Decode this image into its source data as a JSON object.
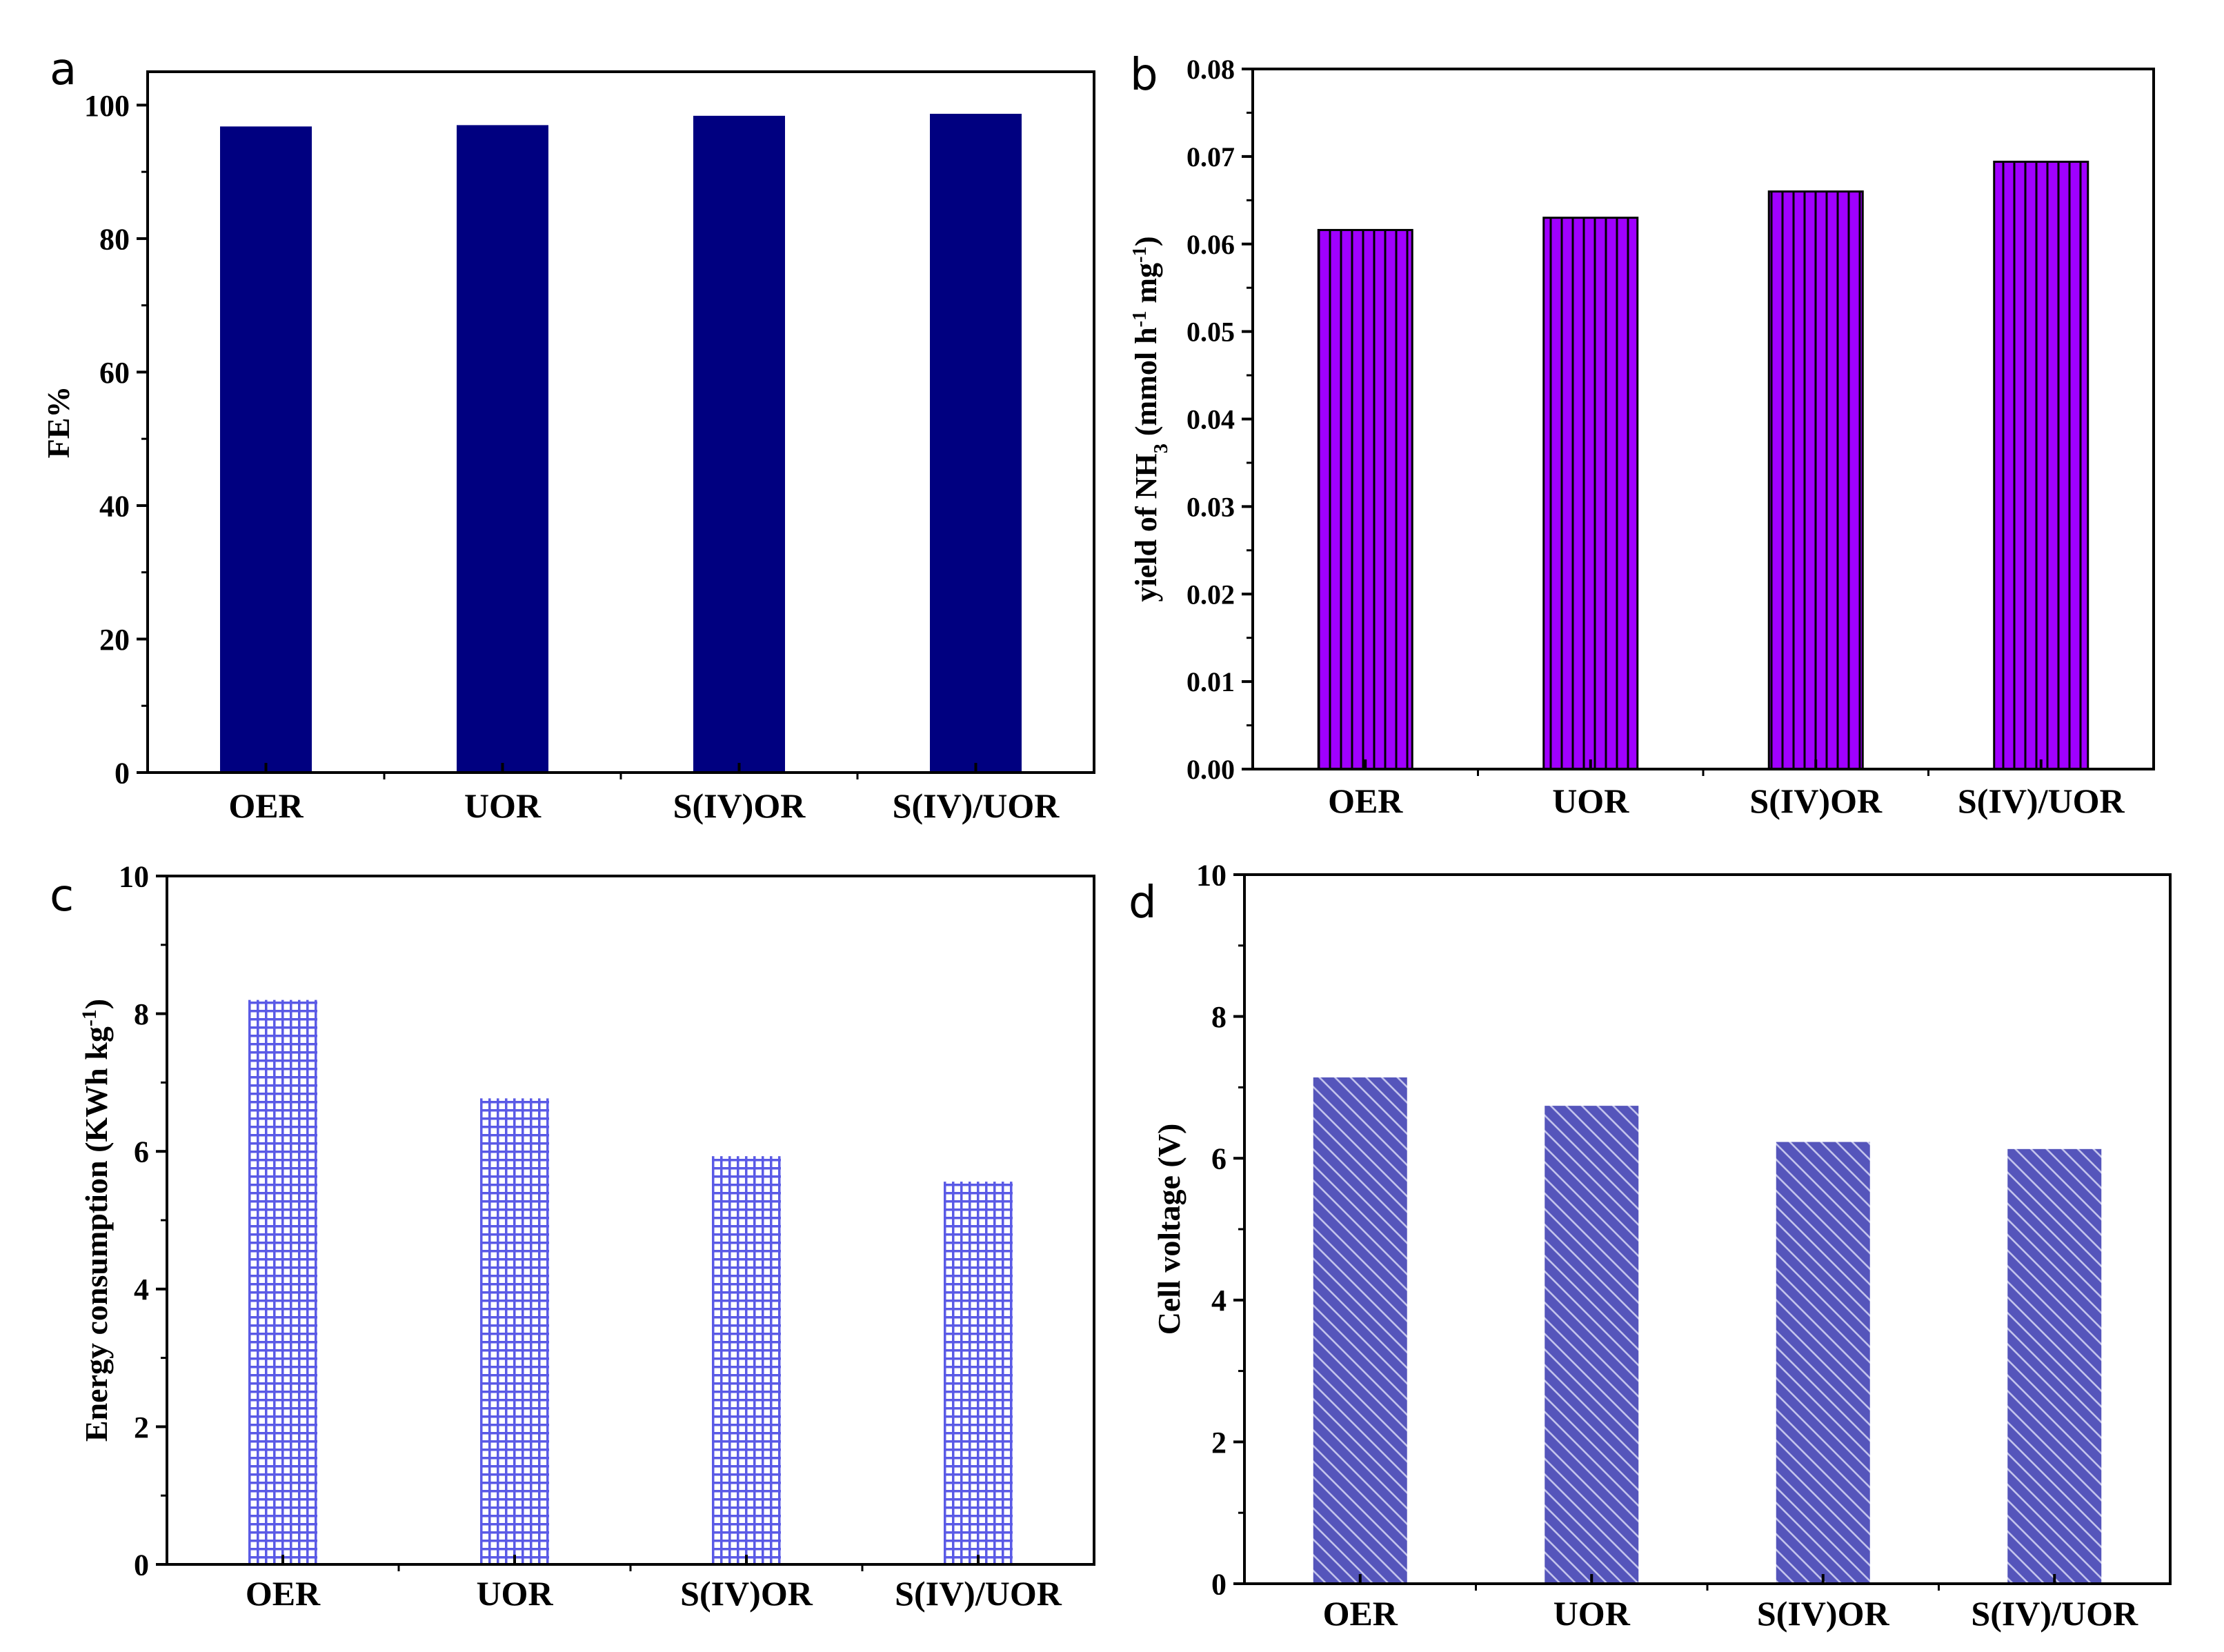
{
  "panels": [
    {
      "letter": "a",
      "chart_data": {
        "type": "bar",
        "categories": [
          "OER",
          "UOR",
          "S(IV)OR",
          "S(IV)/UOR"
        ],
        "values": [
          96.8,
          97.0,
          98.4,
          98.7
        ],
        "ylabel": "FE%",
        "ylim": [
          0,
          105
        ],
        "yticks": [
          0,
          20,
          40,
          60,
          80,
          100
        ],
        "ytick_labels": [
          "0",
          "20",
          "40",
          "60",
          "80",
          "100"
        ],
        "fill": "#000080",
        "pattern": "solid"
      }
    },
    {
      "letter": "b",
      "chart_data": {
        "type": "bar",
        "categories": [
          "OER",
          "UOR",
          "S(IV)OR",
          "S(IV)/UOR"
        ],
        "values": [
          0.0616,
          0.063,
          0.066,
          0.0694
        ],
        "ylabel": "yield of NH3 (mmol h-1 mg-1)",
        "ylabel_parts": [
          {
            "t": "yield of NH",
            "s": ""
          },
          {
            "t": "3",
            "s": "sub"
          },
          {
            "t": " (mmol h",
            "s": ""
          },
          {
            "t": "-1",
            "s": "sup"
          },
          {
            "t": " mg",
            "s": ""
          },
          {
            "t": "-1",
            "s": "sup"
          },
          {
            "t": ")",
            "s": ""
          }
        ],
        "ylim": [
          0,
          0.08
        ],
        "yticks": [
          0,
          0.01,
          0.02,
          0.03,
          0.04,
          0.05,
          0.06,
          0.07,
          0.08
        ],
        "ytick_labels": [
          "0.00",
          "0.01",
          "0.02",
          "0.03",
          "0.04",
          "0.05",
          "0.06",
          "0.07",
          "0.08"
        ],
        "fill": "#a000ff",
        "pattern": "vertical-lines"
      }
    },
    {
      "letter": "c",
      "chart_data": {
        "type": "bar",
        "categories": [
          "OER",
          "UOR",
          "S(IV)OR",
          "S(IV)/UOR"
        ],
        "values": [
          8.2,
          6.77,
          5.93,
          5.56
        ],
        "ylabel": "Energy consumption (KWh kg-1)",
        "ylabel_parts": [
          {
            "t": "Energy consumption (KWh kg",
            "s": ""
          },
          {
            "t": "-1",
            "s": "sup"
          },
          {
            "t": ")",
            "s": ""
          }
        ],
        "ylim": [
          0,
          10
        ],
        "yticks": [
          0,
          2,
          4,
          6,
          8,
          10
        ],
        "ytick_labels": [
          "0",
          "2",
          "4",
          "6",
          "8",
          "10"
        ],
        "fill": "#5a5ae6",
        "pattern": "grid"
      }
    },
    {
      "letter": "d",
      "chart_data": {
        "type": "bar",
        "categories": [
          "OER",
          "UOR",
          "S(IV)OR",
          "S(IV)/UOR"
        ],
        "values": [
          7.14,
          6.74,
          6.23,
          6.13
        ],
        "ylabel": "Cell voltage (V)",
        "ylim": [
          0,
          10
        ],
        "yticks": [
          0,
          2,
          4,
          6,
          8,
          10
        ],
        "ytick_labels": [
          "0",
          "2",
          "4",
          "6",
          "8",
          "10"
        ],
        "fill": "#5555bb",
        "pattern": "diagonal"
      }
    }
  ]
}
